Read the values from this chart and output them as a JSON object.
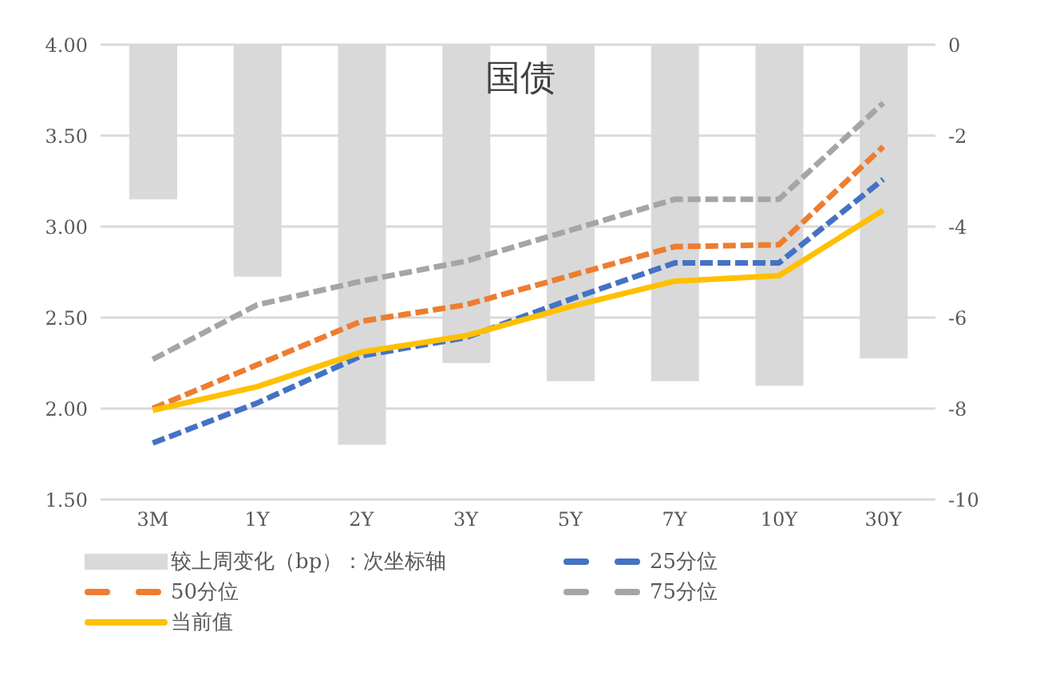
{
  "chart_data": {
    "type": "line",
    "title": "国债",
    "categories": [
      "3M",
      "1Y",
      "2Y",
      "3Y",
      "5Y",
      "7Y",
      "10Y",
      "30Y"
    ],
    "series": [
      {
        "name": "较上周变化（bp）：次坐标轴",
        "type": "bar",
        "axis": "y2",
        "color": "#d9d9d9",
        "values": [
          -3.4,
          -5.1,
          -8.8,
          -7.0,
          -7.4,
          -7.4,
          -7.5,
          -6.9
        ]
      },
      {
        "name": "25分位",
        "color": "#4472c4",
        "line_style": "dashed",
        "values": [
          1.81,
          2.03,
          2.29,
          2.39,
          2.6,
          2.8,
          2.8,
          3.26
        ]
      },
      {
        "name": "50分位",
        "color": "#ed7d31",
        "line_style": "dashed",
        "values": [
          2.0,
          2.24,
          2.48,
          2.57,
          2.73,
          2.89,
          2.9,
          3.44
        ]
      },
      {
        "name": "75分位",
        "color": "#a5a5a5",
        "line_style": "dashed",
        "values": [
          2.27,
          2.57,
          2.7,
          2.81,
          2.98,
          3.15,
          3.15,
          3.68
        ]
      },
      {
        "name": "当前值",
        "color": "#ffc000",
        "line_style": "solid",
        "values": [
          1.99,
          2.12,
          2.31,
          2.4,
          2.56,
          2.7,
          2.73,
          3.09
        ]
      }
    ],
    "ylim": [
      1.5,
      4
    ],
    "yticks": [
      {
        "value": 1.5,
        "label": "1.50"
      },
      {
        "value": 2,
        "label": "2.00"
      },
      {
        "value": 2.5,
        "label": "2.50"
      },
      {
        "value": 3,
        "label": "3.00"
      },
      {
        "value": 3.5,
        "label": "3.50"
      },
      {
        "value": 4,
        "label": "4.00"
      }
    ],
    "y2lim": [
      -10,
      0
    ],
    "y2ticks": [
      -10,
      -8,
      -6,
      -4,
      -2,
      0
    ],
    "grid": "y",
    "legend": "bottom",
    "marker": "none"
  }
}
